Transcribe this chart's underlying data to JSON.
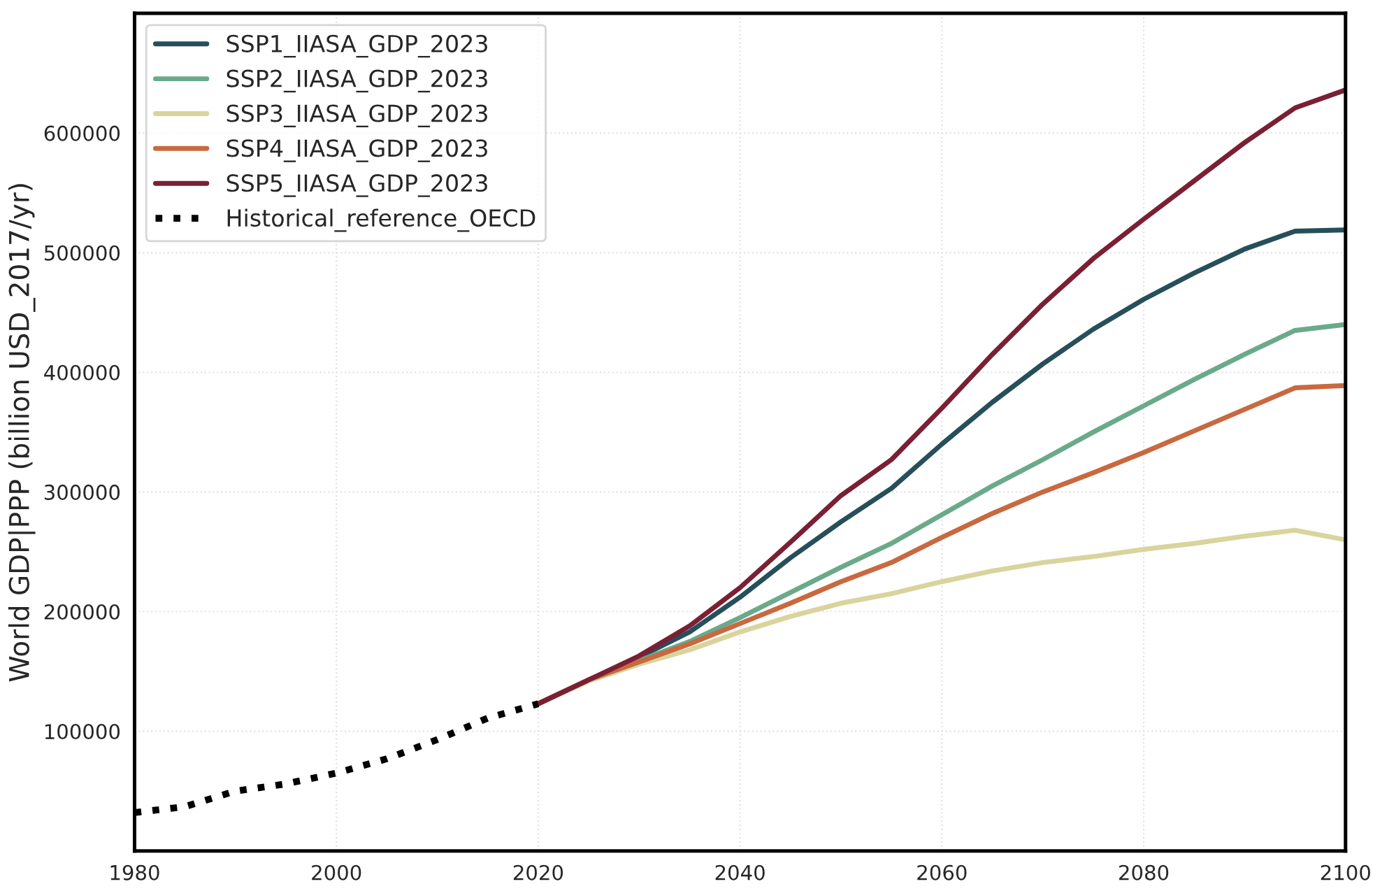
{
  "chart_data": {
    "type": "line",
    "ylabel": "World GDP|PPP (billion USD_2017/yr)",
    "xlim": [
      1980,
      2100
    ],
    "xticks": [
      1980,
      2000,
      2020,
      2040,
      2060,
      2080,
      2100
    ],
    "ylim": [
      0,
      700000
    ],
    "yticks": [
      100000,
      200000,
      300000,
      400000,
      500000,
      600000
    ],
    "grid": true,
    "legend": "top left",
    "marker": "none",
    "series": [
      {
        "name": "SSP1_IIASA_GDP_2023",
        "color": "#264f5a",
        "line_style": "solid",
        "x": [
          2020,
          2025,
          2030,
          2035,
          2040,
          2045,
          2050,
          2055,
          2060,
          2065,
          2070,
          2075,
          2080,
          2085,
          2090,
          2095,
          2100
        ],
        "values": [
          123000,
          143000,
          162000,
          183000,
          212000,
          245000,
          275000,
          303000,
          340000,
          375000,
          407000,
          436000,
          461000,
          483000,
          503000,
          518000,
          519000
        ]
      },
      {
        "name": "SSP2_IIASA_GDP_2023",
        "color": "#6aaa8a",
        "line_style": "solid",
        "x": [
          2020,
          2025,
          2030,
          2035,
          2040,
          2045,
          2050,
          2055,
          2060,
          2065,
          2070,
          2075,
          2080,
          2085,
          2090,
          2095,
          2100
        ],
        "values": [
          123000,
          143000,
          159000,
          175000,
          195000,
          216000,
          237000,
          257000,
          281000,
          305000,
          327000,
          350000,
          372000,
          394000,
          415000,
          435000,
          440000
        ]
      },
      {
        "name": "SSP3_IIASA_GDP_2023",
        "color": "#d9d49c",
        "line_style": "solid",
        "x": [
          2020,
          2025,
          2030,
          2035,
          2040,
          2045,
          2050,
          2055,
          2060,
          2065,
          2070,
          2075,
          2080,
          2085,
          2090,
          2095,
          2100
        ],
        "values": [
          123000,
          142000,
          156000,
          168000,
          183000,
          196000,
          207000,
          215000,
          225000,
          234000,
          241000,
          246000,
          252000,
          257000,
          263000,
          268000,
          260000
        ]
      },
      {
        "name": "SSP4_IIASA_GDP_2023",
        "color": "#c8693f",
        "line_style": "solid",
        "x": [
          2020,
          2025,
          2030,
          2035,
          2040,
          2045,
          2050,
          2055,
          2060,
          2065,
          2070,
          2075,
          2080,
          2085,
          2090,
          2095,
          2100
        ],
        "values": [
          123000,
          143000,
          158000,
          173000,
          190000,
          207000,
          225000,
          241000,
          262000,
          282000,
          300000,
          316000,
          333000,
          351000,
          369000,
          387000,
          389000
        ]
      },
      {
        "name": "SSP5_IIASA_GDP_2023",
        "color": "#7a1f34",
        "line_style": "solid",
        "x": [
          2020,
          2025,
          2030,
          2035,
          2040,
          2045,
          2050,
          2055,
          2060,
          2065,
          2070,
          2075,
          2080,
          2085,
          2090,
          2095,
          2100
        ],
        "values": [
          123000,
          143000,
          163000,
          188000,
          220000,
          258000,
          297000,
          327000,
          370000,
          415000,
          457000,
          495000,
          528000,
          560000,
          592000,
          621000,
          636000
        ]
      },
      {
        "name": "Historical_reference_OECD",
        "color": "#000000",
        "line_style": "dotted",
        "x": [
          1980,
          1985,
          1990,
          1995,
          2000,
          2005,
          2010,
          2015,
          2020
        ],
        "values": [
          32000,
          37000,
          50000,
          56000,
          65000,
          77000,
          93000,
          111000,
          123000
        ]
      }
    ]
  }
}
